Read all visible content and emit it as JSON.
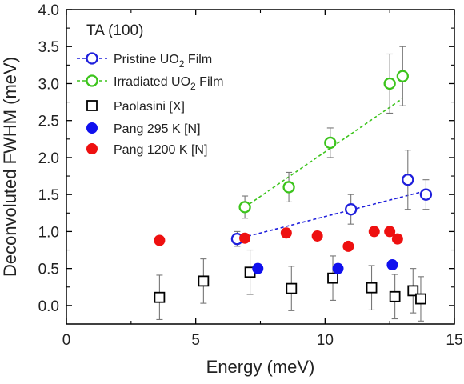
{
  "chart_data": {
    "type": "scatter",
    "title": "",
    "xlabel": "Energy (meV)",
    "ylabel": "Deconvoluted FWHM (meV)",
    "xlim": [
      0,
      15
    ],
    "ylim": [
      -0.25,
      4.0
    ],
    "xticks": [
      0,
      5,
      10,
      15
    ],
    "yticks": [
      0.0,
      0.5,
      1.0,
      1.5,
      2.0,
      2.5,
      3.0,
      3.5,
      4.0
    ],
    "xtick_labels": [
      "0",
      "5",
      "10",
      "15"
    ],
    "ytick_labels": [
      "0.0",
      "0.5",
      "1.0",
      "1.5",
      "2.0",
      "2.5",
      "3.0",
      "3.5",
      "4.0"
    ],
    "legend_title": "TA (100)",
    "legend_position": "top-left",
    "series": [
      {
        "name": "Pristine UO2 Film",
        "label_main": "Pristine UO",
        "label_sub": "2",
        "label_tail": " Film",
        "marker": "open-circle",
        "color": "#1f1fdc",
        "points": [
          {
            "x": 6.6,
            "y": 0.9,
            "err": 0.1
          },
          {
            "x": 11.0,
            "y": 1.3,
            "err": 0.2
          },
          {
            "x": 13.2,
            "y": 1.7,
            "err": 0.4
          },
          {
            "x": 13.9,
            "y": 1.5,
            "err": 0.2
          }
        ],
        "fit": {
          "x": [
            6.6,
            13.9
          ],
          "y": [
            0.9,
            1.55
          ]
        }
      },
      {
        "name": "Irradiated UO2 Film",
        "label_main": "Irradiated UO",
        "label_sub": "2",
        "label_tail": " Film",
        "marker": "open-circle",
        "color": "#3cc41c",
        "points": [
          {
            "x": 6.9,
            "y": 1.33,
            "err": 0.15
          },
          {
            "x": 8.6,
            "y": 1.6,
            "err": 0.2
          },
          {
            "x": 10.2,
            "y": 2.2,
            "err": 0.2
          },
          {
            "x": 12.5,
            "y": 3.0,
            "err": 0.4
          },
          {
            "x": 13.0,
            "y": 3.1,
            "err": 0.4
          }
        ],
        "fit": {
          "x": [
            6.9,
            13.0
          ],
          "y": [
            1.33,
            2.8
          ]
        }
      },
      {
        "name": "Paolasini [X]",
        "marker": "open-square",
        "color": "#000000",
        "points": [
          {
            "x": 3.6,
            "y": 0.11,
            "err": 0.3
          },
          {
            "x": 5.3,
            "y": 0.33,
            "err": 0.3
          },
          {
            "x": 7.1,
            "y": 0.45,
            "err": 0.3
          },
          {
            "x": 8.7,
            "y": 0.23,
            "err": 0.3
          },
          {
            "x": 10.3,
            "y": 0.37,
            "err": 0.3
          },
          {
            "x": 11.8,
            "y": 0.24,
            "err": 0.3
          },
          {
            "x": 12.7,
            "y": 0.12,
            "err": 0.3
          },
          {
            "x": 13.4,
            "y": 0.2,
            "err": 0.3
          },
          {
            "x": 13.7,
            "y": 0.09,
            "err": 0.3
          }
        ]
      },
      {
        "name": "Pang 295 K [N]",
        "marker": "filled-circle",
        "color": "#1010ee",
        "points": [
          {
            "x": 7.4,
            "y": 0.5
          },
          {
            "x": 10.5,
            "y": 0.5
          },
          {
            "x": 12.6,
            "y": 0.55
          }
        ]
      },
      {
        "name": "Pang 1200 K [N]",
        "marker": "filled-circle",
        "color": "#ee1010",
        "points": [
          {
            "x": 3.6,
            "y": 0.88
          },
          {
            "x": 6.9,
            "y": 0.91
          },
          {
            "x": 8.5,
            "y": 0.98
          },
          {
            "x": 9.7,
            "y": 0.94
          },
          {
            "x": 10.9,
            "y": 0.8
          },
          {
            "x": 11.9,
            "y": 1.0
          },
          {
            "x": 12.5,
            "y": 1.0
          },
          {
            "x": 12.8,
            "y": 0.9
          }
        ]
      }
    ]
  }
}
